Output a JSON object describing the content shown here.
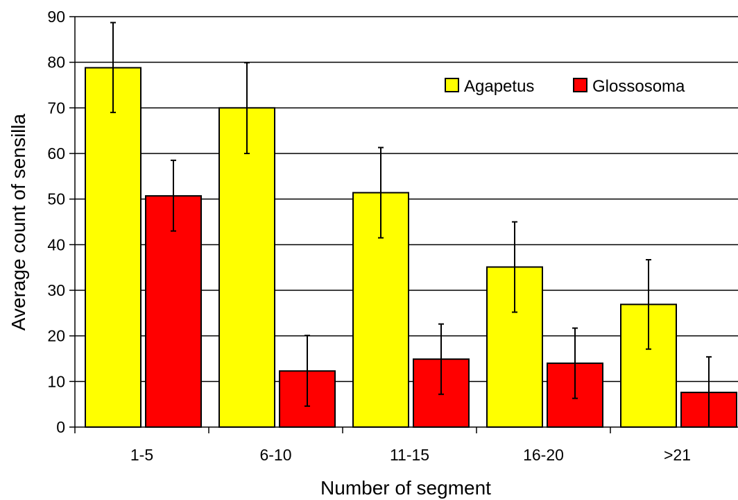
{
  "chart_data": {
    "type": "bar",
    "title": "",
    "xlabel": "Number of segment",
    "ylabel": "Average count of sensilla",
    "categories": [
      "1-5",
      "6-10",
      "11-15",
      "16-20",
      ">21"
    ],
    "ylim": [
      0,
      90
    ],
    "yticks": [
      0,
      10,
      20,
      30,
      40,
      50,
      60,
      70,
      80,
      90
    ],
    "grid": true,
    "legend_position": "top-right",
    "series": [
      {
        "name": "Agapetus",
        "color": "#ffff00",
        "values": [
          78.8,
          70,
          51.4,
          35.1,
          26.9
        ],
        "error_low": [
          69,
          60,
          41.5,
          25.2,
          17.1
        ],
        "error_high": [
          88.7,
          79.9,
          61.3,
          45,
          36.7
        ]
      },
      {
        "name": "Glossosoma",
        "color": "#ff0000",
        "values": [
          50.7,
          12.3,
          14.9,
          14,
          7.6
        ],
        "error_low": [
          43,
          4.6,
          7.2,
          6.3,
          0
        ],
        "error_high": [
          58.5,
          20.1,
          22.6,
          21.7,
          15.4
        ]
      }
    ]
  }
}
